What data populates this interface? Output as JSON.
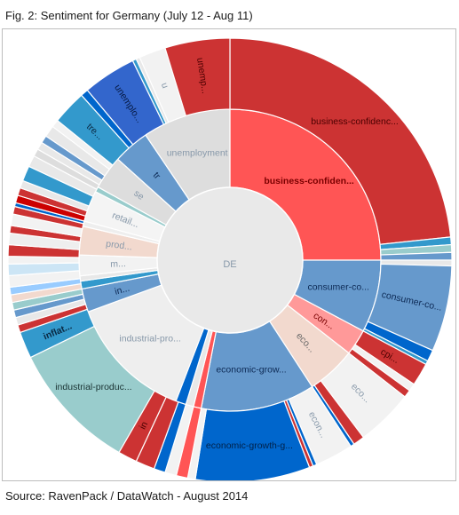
{
  "figure": {
    "title": "Fig. 2: Sentiment for Germany (July 12 - Aug 11)",
    "source": "Source: RavenPack / DataWatch - August 2014"
  },
  "chart_data": {
    "type": "sunburst",
    "center_label": "DE",
    "rings": [
      {
        "level": 1,
        "segments": [
          {
            "label": "business-confiden...",
            "start": 0,
            "end": 90,
            "color": "#ff5555",
            "bold": true,
            "text_color": "#7a0000"
          },
          {
            "label": "consumer-co...",
            "start": 90,
            "end": 118,
            "color": "#6699cc",
            "text_color": "#0d2a55"
          },
          {
            "label": "con...",
            "start": 118,
            "end": 128,
            "color": "#ff9999",
            "text_color": "#7a0000"
          },
          {
            "label": "eco...",
            "start": 128,
            "end": 147,
            "color": "#f2d9ce",
            "text_color": "#666666"
          },
          {
            "label": "economic-grow...",
            "start": 147,
            "end": 191,
            "color": "#6699cc",
            "text_color": "#0d2a55"
          },
          {
            "label": "",
            "start": 191,
            "end": 194,
            "color": "#ff5555"
          },
          {
            "label": "",
            "start": 194,
            "end": 197,
            "color": "#e8e8e8"
          },
          {
            "label": "",
            "start": 197,
            "end": 201,
            "color": "#0066cc"
          },
          {
            "label": "industrial-pro...",
            "start": 201,
            "end": 250,
            "color": "#eeeeee",
            "text_color": "#8899aa"
          },
          {
            "label": "in...",
            "start": 250,
            "end": 259,
            "color": "#6699cc",
            "text_color": "#0d2a55"
          },
          {
            "label": "",
            "start": 259,
            "end": 262,
            "color": "#3399cc"
          },
          {
            "label": "",
            "start": 262,
            "end": 264,
            "color": "#e8e8e8"
          },
          {
            "label": "m...",
            "start": 264,
            "end": 272,
            "color": "#f2f2f2",
            "text_color": "#8899aa"
          },
          {
            "label": "prod...",
            "start": 272,
            "end": 283,
            "color": "#f2d9ce",
            "text_color": "#8899aa"
          },
          {
            "label": "",
            "start": 283,
            "end": 285,
            "color": "#eeeeee"
          },
          {
            "label": "retail...",
            "start": 285,
            "end": 297,
            "color": "#f4f4f4",
            "text_color": "#8899aa"
          },
          {
            "label": "",
            "start": 297,
            "end": 299,
            "color": "#99cccc"
          },
          {
            "label": "se",
            "start": 299,
            "end": 312,
            "color": "#dddddd",
            "text_color": "#8899aa"
          },
          {
            "label": "tr",
            "start": 312,
            "end": 326,
            "color": "#6699cc",
            "text_color": "#0d2a55"
          },
          {
            "label": "unemployment",
            "start": 326,
            "end": 360,
            "color": "#dddddd",
            "text_color": "#8899aa"
          }
        ]
      },
      {
        "level": 2,
        "segments": [
          {
            "label": "business-confidenc...",
            "start": 0,
            "end": 84,
            "color": "#cc3333",
            "text_color": "#4a0000"
          },
          {
            "label": "",
            "start": 84,
            "end": 86,
            "color": "#3399cc"
          },
          {
            "label": "",
            "start": 86,
            "end": 88,
            "color": "#99cccc"
          },
          {
            "label": "",
            "start": 88,
            "end": 90,
            "color": "#6699cc"
          },
          {
            "label": "",
            "start": 90,
            "end": 91.5,
            "color": "#e8e8e8"
          },
          {
            "label": "consumer-co...",
            "start": 91.5,
            "end": 114,
            "color": "#6699cc",
            "text_color": "#0d2a55"
          },
          {
            "label": "",
            "start": 114,
            "end": 117,
            "color": "#0066cc"
          },
          {
            "label": "",
            "start": 117,
            "end": 118,
            "color": "#3399cc"
          },
          {
            "label": "cpi...",
            "start": 118,
            "end": 124,
            "color": "#cc3333",
            "text_color": "#4a0000"
          },
          {
            "label": "",
            "start": 124,
            "end": 126,
            "color": "#f2f2f2"
          },
          {
            "label": "",
            "start": 126,
            "end": 128,
            "color": "#cc3333"
          },
          {
            "label": "eco...",
            "start": 128,
            "end": 143,
            "color": "#f2f2f2",
            "text_color": "#8899aa"
          },
          {
            "label": "",
            "start": 143,
            "end": 146,
            "color": "#cc3333"
          },
          {
            "label": "",
            "start": 146,
            "end": 147,
            "color": "#0066cc"
          },
          {
            "label": "econ...",
            "start": 147,
            "end": 157,
            "color": "#f2f2f2",
            "text_color": "#8899aa"
          },
          {
            "label": "",
            "start": 157,
            "end": 158,
            "color": "#0066cc"
          },
          {
            "label": "",
            "start": 158,
            "end": 159,
            "color": "#cc3333"
          },
          {
            "label": "economic-growth-g...",
            "start": 159,
            "end": 189,
            "color": "#0066cc",
            "text_color": "#00224a"
          },
          {
            "label": "",
            "start": 189,
            "end": 191,
            "color": "#f2f2f2"
          },
          {
            "label": "",
            "start": 191,
            "end": 194,
            "color": "#ff5555"
          },
          {
            "label": "",
            "start": 194,
            "end": 197,
            "color": "#f2f2f2"
          },
          {
            "label": "",
            "start": 197,
            "end": 200,
            "color": "#0066cc"
          },
          {
            "label": "",
            "start": 200,
            "end": 205,
            "color": "#cc3333"
          },
          {
            "label": "in",
            "start": 205,
            "end": 210,
            "color": "#cc3333",
            "text_color": "#4a0000"
          },
          {
            "label": "industrial-produc...",
            "start": 210,
            "end": 244,
            "color": "#99cccc",
            "text_color": "#1a3333"
          },
          {
            "label": "inflat...",
            "start": 244,
            "end": 251,
            "color": "#3399cc",
            "text_color": "#0a2a44",
            "bold": true
          },
          {
            "label": "",
            "start": 251,
            "end": 253,
            "color": "#cc3333"
          },
          {
            "label": "",
            "start": 253,
            "end": 255,
            "color": "#e8e8e8"
          },
          {
            "label": "",
            "start": 255,
            "end": 257,
            "color": "#6699cc"
          },
          {
            "label": "",
            "start": 257,
            "end": 259,
            "color": "#99cccc"
          },
          {
            "label": "",
            "start": 259,
            "end": 261,
            "color": "#f2d9ce"
          },
          {
            "label": "",
            "start": 261,
            "end": 263,
            "color": "#99ccff"
          },
          {
            "label": "",
            "start": 263,
            "end": 266,
            "color": "#f2f2f2"
          },
          {
            "label": "",
            "start": 266,
            "end": 269,
            "color": "#cce5f5"
          },
          {
            "label": "",
            "start": 269,
            "end": 271,
            "color": "#f2f2f2"
          },
          {
            "label": "",
            "start": 271,
            "end": 274,
            "color": "#cc3333"
          },
          {
            "label": "",
            "start": 274,
            "end": 277,
            "color": "#eeeeee"
          },
          {
            "label": "",
            "start": 277,
            "end": 279,
            "color": "#cc3333"
          },
          {
            "label": "",
            "start": 279,
            "end": 282,
            "color": "#f2f2f2"
          },
          {
            "label": "",
            "start": 282,
            "end": 284,
            "color": "#cc3333"
          },
          {
            "label": "",
            "start": 284,
            "end": 285,
            "color": "#0066cc"
          },
          {
            "label": "",
            "start": 285,
            "end": 287,
            "color": "#cc0000"
          },
          {
            "label": "",
            "start": 287,
            "end": 289,
            "color": "#cc3333"
          },
          {
            "label": "",
            "start": 289,
            "end": 291,
            "color": "#e8e8e8"
          },
          {
            "label": "",
            "start": 291,
            "end": 295,
            "color": "#3399cc"
          },
          {
            "label": "",
            "start": 295,
            "end": 298,
            "color": "#e8e8e8"
          },
          {
            "label": "",
            "start": 298,
            "end": 300,
            "color": "#dddddd"
          },
          {
            "label": "",
            "start": 300,
            "end": 302,
            "color": "#e8e8e8"
          },
          {
            "label": "",
            "start": 302,
            "end": 304,
            "color": "#6699cc"
          },
          {
            "label": "",
            "start": 304,
            "end": 307,
            "color": "#e8e8e8"
          },
          {
            "label": "",
            "start": 307,
            "end": 309,
            "color": "#f2f2f2"
          },
          {
            "label": "tre...",
            "start": 309,
            "end": 318,
            "color": "#3399cc",
            "text_color": "#0a2a44"
          },
          {
            "label": "",
            "start": 318,
            "end": 320,
            "color": "#0066cc"
          },
          {
            "label": "unemplo...",
            "start": 320,
            "end": 334,
            "color": "#3366cc",
            "text_color": "#061a44"
          },
          {
            "label": "",
            "start": 334,
            "end": 335,
            "color": "#3399cc"
          },
          {
            "label": "",
            "start": 335,
            "end": 336,
            "color": "#e8e8e8"
          },
          {
            "label": "u",
            "start": 336,
            "end": 343,
            "color": "#f2f2f2",
            "text_color": "#8899aa"
          },
          {
            "label": "unemp...",
            "start": 343,
            "end": 360,
            "color": "#cc3333",
            "text_color": "#4a0000"
          }
        ]
      }
    ]
  }
}
